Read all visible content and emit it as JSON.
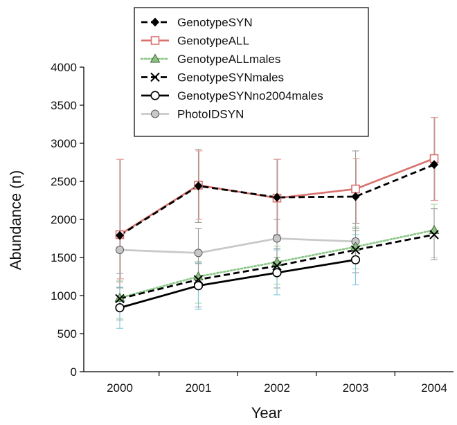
{
  "chart_data": {
    "type": "line",
    "xlabel": "Year",
    "ylabel": "Abundance (n)",
    "ylim": [
      0,
      4000
    ],
    "yticks": [
      0,
      500,
      1000,
      1500,
      2000,
      2500,
      3000,
      3500,
      4000
    ],
    "x": [
      "2000",
      "2001",
      "2002",
      "2003",
      "2004"
    ],
    "legend_position": "top-center",
    "grid": false,
    "series": [
      {
        "name": "GenotypeSYN",
        "color": "#000000",
        "dash": "dashed",
        "marker": "diamond",
        "values": [
          1790,
          2440,
          2290,
          2300,
          2720
        ],
        "err_low": [
          1290,
          1960,
          1800,
          1880,
          2250
        ],
        "err_high": [
          2790,
          2920,
          2790,
          2900,
          3340
        ]
      },
      {
        "name": "GenotypeALL",
        "color": "#d9716e",
        "dash": "solid",
        "marker": "open-square",
        "values": [
          1800,
          2450,
          2280,
          2400,
          2800
        ],
        "err_low": [
          1220,
          2000,
          1750,
          1950,
          2250
        ],
        "err_high": [
          2790,
          2900,
          2790,
          2800,
          3340
        ]
      },
      {
        "name": "GenotypeALLmales",
        "color": "#8ec98a",
        "dash": "dotted",
        "marker": "triangle",
        "values": [
          970,
          1250,
          1440,
          1640,
          1860
        ],
        "err_low": [
          700,
          900,
          1150,
          1350,
          1500
        ],
        "err_high": [
          1200,
          1450,
          1650,
          1900,
          2200
        ]
      },
      {
        "name": "GenotypeSYNmales",
        "color": "#000000",
        "dash": "dashed",
        "marker": "x",
        "values": [
          960,
          1210,
          1390,
          1600,
          1800
        ],
        "err_low": [
          680,
          850,
          1100,
          1300,
          1470
        ],
        "err_high": [
          1180,
          1420,
          1620,
          1850,
          2140
        ]
      },
      {
        "name": "GenotypeSYNno2004males",
        "color": "#000000",
        "dash": "solid",
        "marker": "open-circle",
        "values": [
          840,
          1130,
          1300,
          1470,
          null
        ],
        "err_low": [
          570,
          820,
          1010,
          1140,
          null
        ],
        "err_high": [
          1110,
          1430,
          1600,
          1800,
          null
        ]
      },
      {
        "name": "PhotoIDSYN",
        "color": "#c9c9c9",
        "dash": "solid",
        "marker": "gray-circle",
        "values": [
          1600,
          1560,
          1750,
          1710,
          null
        ],
        "err_low": [
          1100,
          1250,
          1500,
          1450,
          null
        ],
        "err_high": [
          1850,
          1880,
          2000,
          1950,
          null
        ]
      }
    ]
  }
}
